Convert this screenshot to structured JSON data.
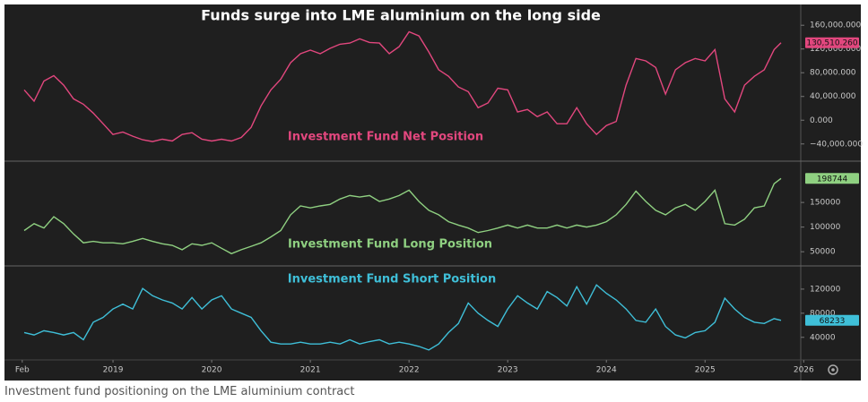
{
  "caption": "Investment fund positioning on the LME aluminium contract",
  "chart_data": [
    {
      "type": "line",
      "title": "Funds surge into LME aluminium on the long side",
      "x": [
        2018.1,
        2018.2,
        2018.3,
        2018.4,
        2018.5,
        2018.6,
        2018.7,
        2018.8,
        2018.9,
        2019.0,
        2019.1,
        2019.2,
        2019.3,
        2019.4,
        2019.5,
        2019.6,
        2019.7,
        2019.8,
        2019.9,
        2020.0,
        2020.1,
        2020.2,
        2020.3,
        2020.4,
        2020.5,
        2020.6,
        2020.7,
        2020.8,
        2020.9,
        2021.0,
        2021.1,
        2021.2,
        2021.3,
        2021.4,
        2021.5,
        2021.6,
        2021.7,
        2021.8,
        2021.9,
        2022.0,
        2022.1,
        2022.2,
        2022.3,
        2022.4,
        2022.5,
        2022.6,
        2022.7,
        2022.8,
        2022.9,
        2023.0,
        2023.1,
        2023.2,
        2023.3,
        2023.4,
        2023.5,
        2023.6,
        2023.7,
        2023.8,
        2023.9,
        2024.0,
        2024.1,
        2024.2,
        2024.3,
        2024.4,
        2024.5,
        2024.6,
        2024.7,
        2024.8,
        2024.9,
        2025.0,
        2025.1,
        2025.2,
        2025.3,
        2025.4,
        2025.5,
        2025.6,
        2025.7,
        2025.77
      ],
      "xlim": [
        2017.9,
        2025.97
      ],
      "ylim": [
        -66000,
        195000
      ],
      "yticks": [
        {
          "value": 160000,
          "label": "160,000.000"
        },
        {
          "value": 120000,
          "label": "120,000.000"
        },
        {
          "value": 80000,
          "label": "80,000.000"
        },
        {
          "value": 40000,
          "label": "40,000.000"
        },
        {
          "value": 0,
          "label": "0.000"
        },
        {
          "value": -40000,
          "label": "−40,000.000"
        }
      ],
      "series": [
        {
          "name": "Investment Fund Net Position",
          "color": "#e2477e",
          "last_value_label": "130,510.260",
          "values": [
            51000,
            32000,
            66000,
            75000,
            59000,
            36000,
            27000,
            12000,
            -6000,
            -24000,
            -20000,
            -27000,
            -33000,
            -36000,
            -32000,
            -35000,
            -24000,
            -21000,
            -32000,
            -35000,
            -32000,
            -35000,
            -29000,
            -12000,
            24000,
            51000,
            69000,
            97000,
            112000,
            118000,
            112000,
            121000,
            128000,
            130000,
            137000,
            131000,
            130000,
            112000,
            124000,
            149000,
            142000,
            115000,
            85000,
            74000,
            56000,
            48000,
            21000,
            29000,
            54000,
            51000,
            14000,
            18000,
            6000,
            14000,
            -6000,
            -6000,
            21000,
            -6000,
            -24000,
            -9000,
            -2000,
            59000,
            104000,
            100000,
            89000,
            44000,
            85000,
            97000,
            104000,
            100000,
            119000,
            36000,
            14000,
            59000,
            74000,
            85000,
            119000,
            130510.26
          ]
        }
      ]
    },
    {
      "type": "line",
      "x": [
        2018.1,
        2018.2,
        2018.3,
        2018.4,
        2018.5,
        2018.6,
        2018.7,
        2018.8,
        2018.9,
        2019.0,
        2019.1,
        2019.2,
        2019.3,
        2019.4,
        2019.5,
        2019.6,
        2019.7,
        2019.8,
        2019.9,
        2020.0,
        2020.1,
        2020.2,
        2020.3,
        2020.4,
        2020.5,
        2020.6,
        2020.7,
        2020.8,
        2020.9,
        2021.0,
        2021.1,
        2021.2,
        2021.3,
        2021.4,
        2021.5,
        2021.6,
        2021.7,
        2021.8,
        2021.9,
        2022.0,
        2022.1,
        2022.2,
        2022.3,
        2022.4,
        2022.5,
        2022.6,
        2022.7,
        2022.8,
        2022.9,
        2023.0,
        2023.1,
        2023.2,
        2023.3,
        2023.4,
        2023.5,
        2023.6,
        2023.7,
        2023.8,
        2023.9,
        2024.0,
        2024.1,
        2024.2,
        2024.3,
        2024.4,
        2024.5,
        2024.6,
        2024.7,
        2024.8,
        2024.9,
        2025.0,
        2025.1,
        2025.2,
        2025.3,
        2025.4,
        2025.5,
        2025.6,
        2025.7,
        2025.77
      ],
      "xlim": [
        2017.9,
        2025.97
      ],
      "ylim": [
        23000,
        232000
      ],
      "yticks": [
        150000,
        100000,
        50000
      ],
      "series": [
        {
          "name": "Investment Fund Long Position",
          "color": "#8fd081",
          "values": [
            93000,
            107000,
            98000,
            121000,
            107000,
            86000,
            68000,
            71000,
            68000,
            68000,
            66000,
            71000,
            77000,
            71000,
            66000,
            63000,
            54000,
            66000,
            63000,
            68000,
            57000,
            46000,
            54000,
            61000,
            68000,
            80000,
            93000,
            125000,
            143000,
            139000,
            143000,
            146000,
            157000,
            164000,
            161000,
            164000,
            152000,
            157000,
            164000,
            175000,
            152000,
            134000,
            125000,
            111000,
            104000,
            98000,
            89000,
            93000,
            98000,
            104000,
            98000,
            104000,
            98000,
            98000,
            104000,
            98000,
            104000,
            100000,
            104000,
            111000,
            125000,
            146000,
            173000,
            152000,
            134000,
            125000,
            139000,
            146000,
            134000,
            152000,
            175000,
            107000,
            104000,
            116000,
            139000,
            143000,
            188000,
            198744
          ]
        }
      ]
    },
    {
      "type": "line",
      "x": [
        2018.1,
        2018.2,
        2018.3,
        2018.4,
        2018.5,
        2018.6,
        2018.7,
        2018.8,
        2018.9,
        2019.0,
        2019.1,
        2019.2,
        2019.3,
        2019.4,
        2019.5,
        2019.6,
        2019.7,
        2019.8,
        2019.9,
        2020.0,
        2020.1,
        2020.2,
        2020.3,
        2020.4,
        2020.5,
        2020.6,
        2020.7,
        2020.8,
        2020.9,
        2021.0,
        2021.1,
        2021.2,
        2021.3,
        2021.4,
        2021.5,
        2021.6,
        2021.7,
        2021.8,
        2021.9,
        2022.0,
        2022.1,
        2022.2,
        2022.3,
        2022.4,
        2022.5,
        2022.6,
        2022.7,
        2022.8,
        2022.9,
        2023.0,
        2023.1,
        2023.2,
        2023.3,
        2023.4,
        2023.5,
        2023.6,
        2023.7,
        2023.8,
        2023.9,
        2024.0,
        2024.1,
        2024.2,
        2024.3,
        2024.4,
        2024.5,
        2024.6,
        2024.7,
        2024.8,
        2024.9,
        2025.0,
        2025.1,
        2025.2,
        2025.3,
        2025.4,
        2025.5,
        2025.6,
        2025.7,
        2025.77
      ],
      "xlim": [
        2017.9,
        2025.97
      ],
      "ylim": [
        4000,
        157000
      ],
      "yticks": [
        120000,
        80000,
        40000
      ],
      "xticks": [
        {
          "value": 2018.08,
          "label": "Feb"
        },
        2019,
        2020,
        2021,
        2022,
        2023,
        2024,
        2025,
        2026
      ],
      "series": [
        {
          "name": "Investment Fund Short Position",
          "color": "#3fbfd8",
          "values": [
            48000,
            44000,
            51000,
            48000,
            44000,
            48000,
            36000,
            65000,
            73000,
            87000,
            95000,
            87000,
            121000,
            109000,
            102000,
            97000,
            87000,
            106000,
            87000,
            102000,
            109000,
            87000,
            80000,
            73000,
            51000,
            32000,
            29000,
            29000,
            32000,
            29000,
            29000,
            32000,
            29000,
            36000,
            29000,
            33000,
            36000,
            29000,
            32000,
            29000,
            25000,
            19000,
            29000,
            48000,
            63000,
            97000,
            80000,
            68000,
            58000,
            87000,
            109000,
            97000,
            87000,
            116000,
            106000,
            92000,
            124000,
            95000,
            127000,
            113000,
            102000,
            87000,
            68000,
            65000,
            87000,
            58000,
            44000,
            39000,
            48000,
            51000,
            65000,
            105000,
            87000,
            73000,
            65000,
            63000,
            71000,
            68233
          ]
        }
      ]
    }
  ]
}
